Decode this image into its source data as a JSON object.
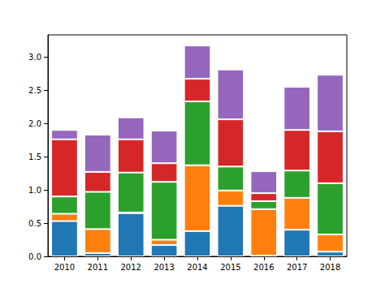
{
  "chart_data": {
    "type": "bar",
    "stacked": true,
    "grid": false,
    "categories": [
      "2010",
      "2011",
      "2012",
      "2013",
      "2014",
      "2015",
      "2016",
      "2017",
      "2018"
    ],
    "series": [
      {
        "color": "#1f77b4",
        "values": [
          0.53,
          0.05,
          0.65,
          0.17,
          0.38,
          0.76,
          0.01,
          0.4,
          0.07
        ]
      },
      {
        "color": "#ff7f0e",
        "values": [
          0.11,
          0.36,
          0.01,
          0.08,
          0.99,
          0.23,
          0.7,
          0.48,
          0.26
        ]
      },
      {
        "color": "#2ca02c",
        "values": [
          0.26,
          0.56,
          0.6,
          0.87,
          0.96,
          0.36,
          0.12,
          0.41,
          0.77
        ]
      },
      {
        "color": "#d62728",
        "values": [
          0.86,
          0.3,
          0.5,
          0.28,
          0.34,
          0.71,
          0.12,
          0.61,
          0.78
        ]
      },
      {
        "color": "#9467bd",
        "values": [
          0.14,
          0.56,
          0.33,
          0.49,
          0.5,
          0.75,
          0.33,
          0.65,
          0.85
        ]
      }
    ],
    "ylim": [
      0,
      3.33
    ],
    "yticks": [
      {
        "value": 0,
        "label": "0.0"
      },
      0.5,
      {
        "value": 1,
        "label": "1.0"
      },
      1.5,
      {
        "value": 2,
        "label": "2.0"
      },
      2.5,
      {
        "value": 3,
        "label": "3.0"
      }
    ]
  }
}
